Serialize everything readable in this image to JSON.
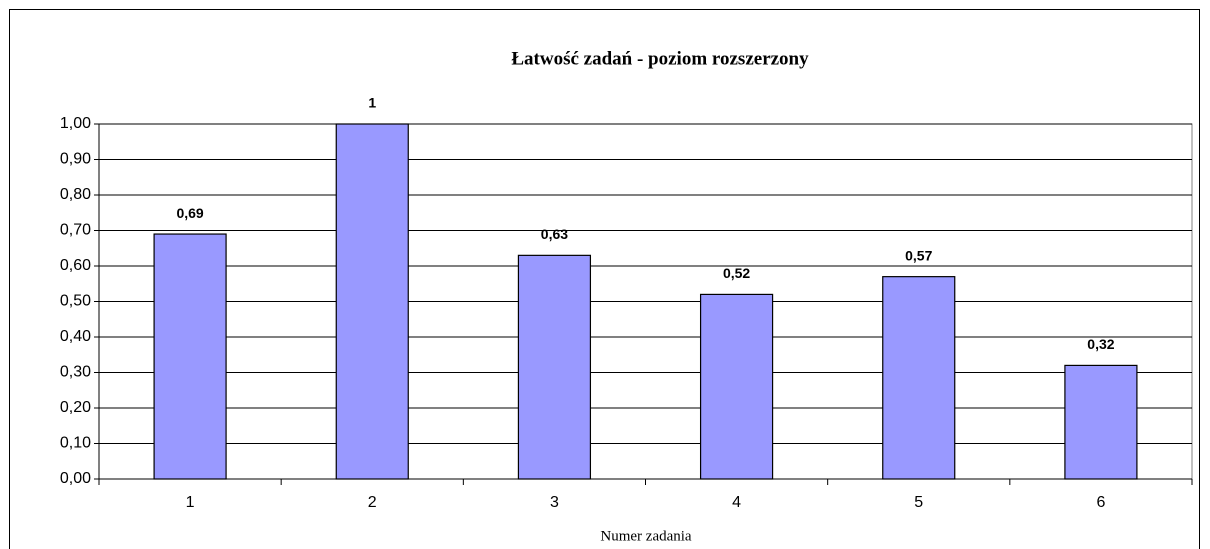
{
  "chart_data": {
    "type": "bar",
    "title": "Łatwość zadań - poziom rozszerzony",
    "x_label": "Numer zadania",
    "categories": [
      "1",
      "2",
      "3",
      "4",
      "5",
      "6"
    ],
    "values": [
      0.69,
      1,
      0.63,
      0.52,
      0.57,
      0.32
    ],
    "value_labels": [
      "0,69",
      "1",
      "0,63",
      "0,52",
      "0,57",
      "0,32"
    ],
    "color": "#9999ff",
    "ylim": [
      0,
      1
    ],
    "yticks": [
      {
        "value": 0,
        "label": "0,00"
      },
      {
        "value": 0.1,
        "label": "0,10"
      },
      {
        "value": 0.2,
        "label": "0,20"
      },
      {
        "value": 0.3,
        "label": "0,30"
      },
      {
        "value": 0.4,
        "label": "0,40"
      },
      {
        "value": 0.5,
        "label": "0,50"
      },
      {
        "value": 0.6,
        "label": "0,60"
      },
      {
        "value": 0.7,
        "label": "0,70"
      },
      {
        "value": 0.8,
        "label": "0,80"
      },
      {
        "value": 0.9,
        "label": "0,90"
      },
      {
        "value": 1,
        "label": "1,00"
      }
    ],
    "grid": true
  }
}
